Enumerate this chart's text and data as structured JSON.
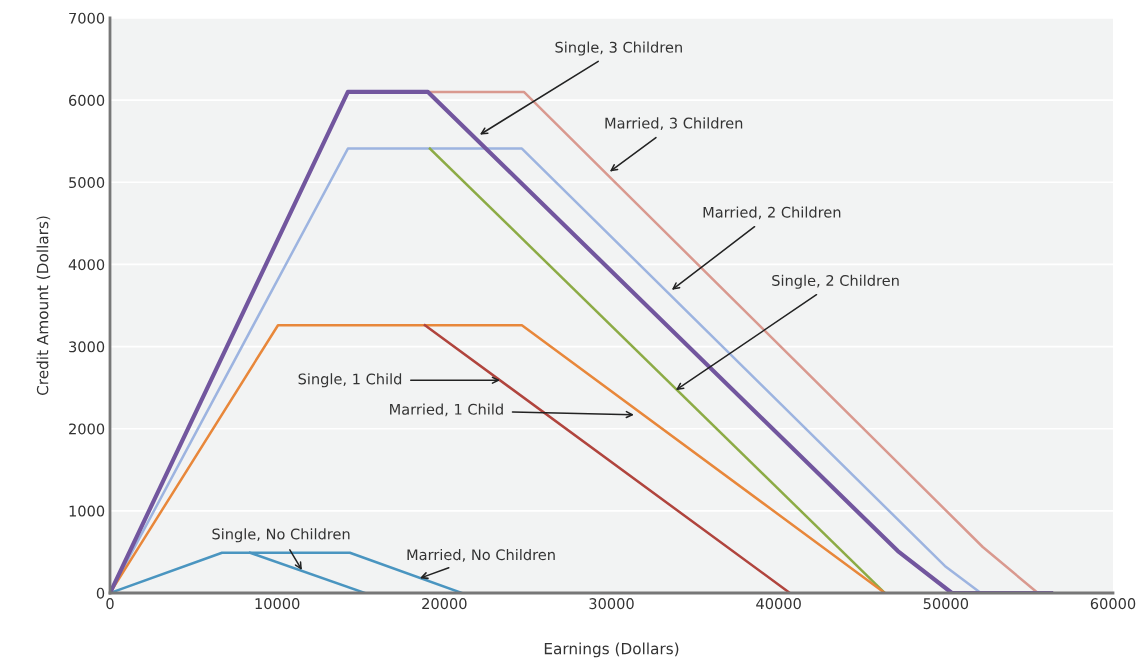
{
  "chart_data": {
    "type": "line",
    "xlabel": "Earnings (Dollars)",
    "ylabel": "Credit Amount (Dollars)",
    "xlim": [
      0,
      60000
    ],
    "xticks": [
      0,
      10000,
      20000,
      30000,
      40000,
      50000,
      60000
    ],
    "ylim": [
      0,
      7000
    ],
    "yticks": [
      0,
      1000,
      2000,
      3000,
      4000,
      5000,
      6000,
      7000
    ],
    "grid": "y",
    "marker": "none",
    "line_style": "solid",
    "series": [
      {
        "color": "#d9998f",
        "x": [
          19020,
          24760,
          52210,
          55500
        ],
        "values": [
          6100,
          6100,
          560,
          0
        ]
      },
      {
        "color": "#9db4e0",
        "x": [
          0,
          14230,
          24640,
          49940,
          52090
        ],
        "values": [
          0,
          5410,
          5410,
          330,
          0
        ]
      },
      {
        "color": "#8cab45",
        "x": [
          19140,
          46350
        ],
        "values": [
          5410,
          0
        ]
      },
      {
        "color": "#e8873a",
        "x": [
          0,
          10050,
          24640,
          46350
        ],
        "values": [
          0,
          3260,
          3260,
          0
        ]
      },
      {
        "color": "#b0443d",
        "x": [
          18840,
          40670
        ],
        "values": [
          3260,
          0
        ]
      },
      {
        "color": "#4a95c0",
        "x": [
          0,
          6700,
          14350,
          21050
        ],
        "values": [
          0,
          490,
          490,
          0
        ]
      },
      {
        "color": "#4a95c0",
        "x": [
          8370,
          15250
        ],
        "values": [
          490,
          0
        ]
      },
      {
        "color": "#72569e",
        "x": [
          0,
          14230,
          19020,
          47130,
          50360,
          56300
        ],
        "values": [
          0,
          6100,
          6100,
          510,
          0,
          0
        ]
      }
    ],
    "annotations": [
      {
        "text": "Single, 3 Children",
        "x": 22130,
        "y": 5580
      },
      {
        "text": "Married, 3 Children",
        "x": 29900,
        "y": 5130
      },
      {
        "text": "Married, 2 Children",
        "x": 33610,
        "y": 3690
      },
      {
        "text": "Single, 2 Children",
        "x": 33850,
        "y": 2470
      },
      {
        "text": "Single, 1 Child",
        "x": 23330,
        "y": 2590
      },
      {
        "text": "Married, 1 Child",
        "x": 31340,
        "y": 2170
      },
      {
        "text": "Single, No Children",
        "x": 11480,
        "y": 280
      },
      {
        "text": "Married, No Children",
        "x": 18540,
        "y": 180
      }
    ]
  }
}
